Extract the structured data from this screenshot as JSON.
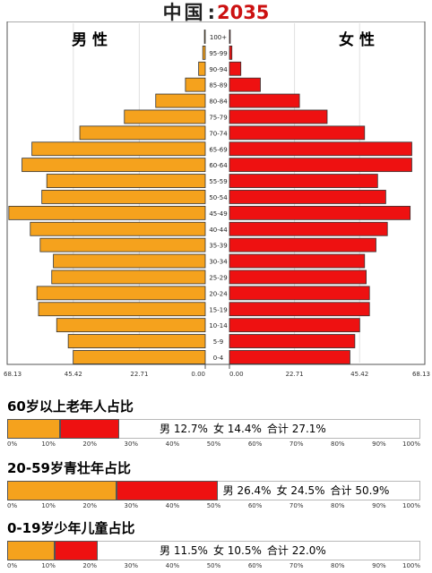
{
  "header": {
    "country": "中国",
    "colon": ":",
    "year": "2035"
  },
  "chart_data": {
    "type": "bar",
    "subtype": "population-pyramid",
    "male_label": "男 性",
    "female_label": "女 性",
    "age_groups": [
      "100+",
      "95-99",
      "90-94",
      "85-89",
      "80-84",
      "75-79",
      "70-74",
      "65-69",
      "60-64",
      "55-59",
      "50-54",
      "45-49",
      "40-44",
      "35-39",
      "30-34",
      "25-29",
      "20-24",
      "15-19",
      "10-14",
      "5-9",
      "0-4"
    ],
    "male": [
      0.5,
      1.5,
      4,
      12,
      30,
      49,
      76,
      105,
      111,
      96,
      99,
      119,
      106,
      100,
      92,
      93,
      102,
      101,
      90,
      83,
      80
    ],
    "female": [
      0.5,
      1.5,
      7,
      19,
      43,
      60,
      83,
      112,
      112,
      91,
      96,
      111,
      97,
      90,
      83,
      84,
      86,
      86,
      80,
      77,
      74
    ],
    "male_ticks": [
      "68.13",
      "45.42",
      "22.71",
      "0.00"
    ],
    "female_ticks": [
      "0.00",
      "22.71",
      "45.42",
      "68.13"
    ],
    "male_color": "#f5a21d",
    "female_color": "#ee1111",
    "grid": true
  },
  "ratios": [
    {
      "title": "60岁以上老年人占比",
      "male_pct": 12.7,
      "female_pct": 14.4,
      "male_text": "男 12.7%",
      "female_text": "女 14.4%",
      "total_text": "合计 27.1%"
    },
    {
      "title": "20-59岁青壮年占比",
      "male_pct": 26.4,
      "female_pct": 24.5,
      "male_text": "男 26.4%",
      "female_text": "女 24.5%",
      "total_text": "合计 50.9%"
    },
    {
      "title": "0-19岁少年儿童占比",
      "male_pct": 11.5,
      "female_pct": 10.5,
      "male_text": "男 11.5%",
      "female_text": "女 10.5%",
      "total_text": "合计  22.0%"
    }
  ],
  "percent_ticks": [
    "0%",
    "10%",
    "20%",
    "30%",
    "40%",
    "50%",
    "60%",
    "70%",
    "80%",
    "90%",
    "100%"
  ]
}
